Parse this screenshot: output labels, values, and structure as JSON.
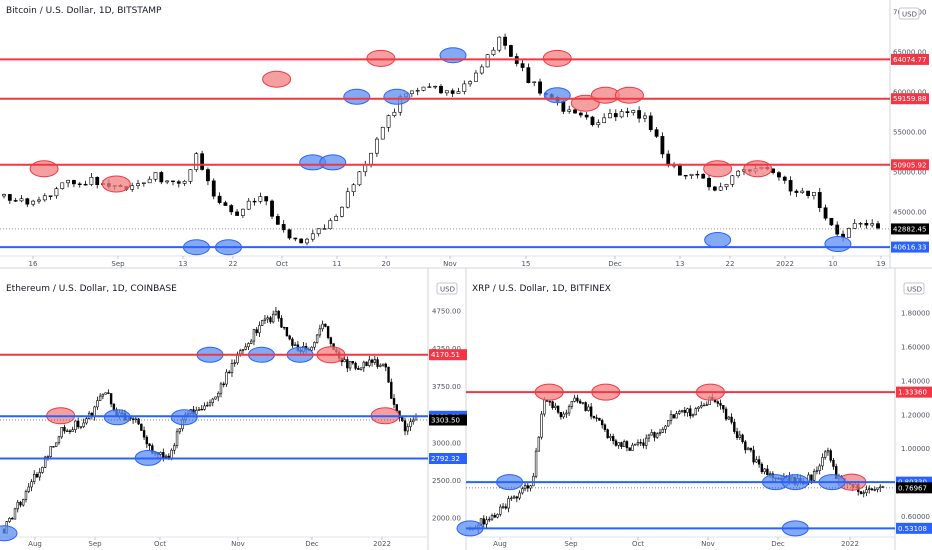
{
  "colors": {
    "up": "#ffffff",
    "down": "#000000",
    "res": "#f23645",
    "sup": "#2962ff",
    "red_fill": "#f08080",
    "blue_fill": "#5b8def",
    "price_label": "#000000"
  },
  "chart_data": [
    {
      "id": "btc",
      "type": "candlestick",
      "title": "Bitcoin / U.S. Dollar, 1D, BITSTAMP",
      "currency": "USD",
      "y_ticks": [
        45000,
        50000,
        55000,
        60000,
        65000,
        70000
      ],
      "y_tick_labels": [
        "45000.00",
        "50000.00",
        "55000.00",
        "60000.00",
        "65000.00",
        "70000.00"
      ],
      "ylim": [
        39500,
        71500
      ],
      "x_ticks": [
        "16",
        "Sep",
        "13",
        "22",
        "Oct",
        "11",
        "20",
        "Nov",
        "15",
        "Dec",
        "13",
        "22",
        "2022",
        "10",
        "19"
      ],
      "levels": [
        {
          "value": 64074.77,
          "label": "64074.77",
          "kind": "resistance"
        },
        {
          "value": 59159.88,
          "label": "59159.88",
          "kind": "resistance"
        },
        {
          "value": 50905.92,
          "label": "50905.92",
          "kind": "resistance"
        },
        {
          "value": 40616.33,
          "label": "40616.33",
          "kind": "support"
        }
      ],
      "current": {
        "value": 42882.45,
        "label": "42882.45"
      },
      "n_bars": 150,
      "path": [
        [
          0,
          47000
        ],
        [
          8,
          46000
        ],
        [
          14,
          48500
        ],
        [
          22,
          49000
        ],
        [
          30,
          47500
        ],
        [
          38,
          49500
        ],
        [
          44,
          48000
        ],
        [
          48,
          52000
        ],
        [
          52,
          47000
        ],
        [
          58,
          45000
        ],
        [
          64,
          47500
        ],
        [
          70,
          42000
        ],
        [
          76,
          41500
        ],
        [
          82,
          44000
        ],
        [
          88,
          49500
        ],
        [
          94,
          55000
        ],
        [
          100,
          60000
        ],
        [
          106,
          60800
        ],
        [
          112,
          59500
        ],
        [
          118,
          62000
        ],
        [
          124,
          67000
        ],
        [
          130,
          62000
        ],
        [
          136,
          59000
        ],
        [
          142,
          57200
        ],
        [
          148,
          56000
        ],
        [
          154,
          57500
        ],
        [
          160,
          57000
        ],
        [
          166,
          50500
        ],
        [
          172,
          49500
        ],
        [
          178,
          48000
        ],
        [
          184,
          50000
        ],
        [
          190,
          50500
        ],
        [
          196,
          48000
        ],
        [
          202,
          47000
        ],
        [
          208,
          42000
        ],
        [
          214,
          43500
        ],
        [
          218,
          42882
        ]
      ],
      "red_marks": [
        [
          10,
          50400
        ],
        [
          28,
          48500
        ],
        [
          68,
          61600
        ],
        [
          94,
          64200
        ],
        [
          138,
          64200
        ],
        [
          145,
          58600
        ],
        [
          150,
          59600
        ],
        [
          156,
          59600
        ],
        [
          178,
          50400
        ],
        [
          188,
          50400
        ]
      ],
      "blue_marks": [
        [
          48,
          40600
        ],
        [
          56,
          40600
        ],
        [
          77,
          51200
        ],
        [
          82,
          51200
        ],
        [
          88,
          59400
        ],
        [
          98,
          59400
        ],
        [
          112,
          64600
        ],
        [
          138,
          59600
        ],
        [
          178,
          41500
        ],
        [
          208,
          41000
        ]
      ]
    },
    {
      "id": "eth",
      "type": "candlestick",
      "title": "Ethereum / U.S. Dollar, 1D, COINBASE",
      "currency": "USD",
      "y_ticks": [
        2000,
        2500,
        3000,
        3750,
        4250,
        4750
      ],
      "y_tick_labels": [
        "2000.00",
        "2500.00",
        "3000.00",
        "3750.00",
        "4250.00",
        "4750.00"
      ],
      "ylim": [
        1750,
        4950
      ],
      "x_ticks": [
        "Aug",
        "Sep",
        "Oct",
        "Nov",
        "Dec",
        "2022"
      ],
      "levels": [
        {
          "value": 4170.51,
          "label": "4170.51",
          "kind": "resistance"
        },
        {
          "value": 3352.69,
          "label": "3352.69",
          "kind": "support"
        },
        {
          "value": 2792.32,
          "label": "2792.32",
          "kind": "support"
        }
      ],
      "current": {
        "value": 3303.5,
        "label": "3303.50"
      },
      "n_bars": 150,
      "path": [
        [
          0,
          1850
        ],
        [
          12,
          2550
        ],
        [
          22,
          3150
        ],
        [
          32,
          3300
        ],
        [
          40,
          3700
        ],
        [
          44,
          3350
        ],
        [
          52,
          3300
        ],
        [
          58,
          2850
        ],
        [
          64,
          2800
        ],
        [
          70,
          3350
        ],
        [
          80,
          3500
        ],
        [
          90,
          4100
        ],
        [
          100,
          4600
        ],
        [
          106,
          4700
        ],
        [
          112,
          4300
        ],
        [
          118,
          4200
        ],
        [
          124,
          4550
        ],
        [
          130,
          4100
        ],
        [
          136,
          4000
        ],
        [
          142,
          4100
        ],
        [
          148,
          4000
        ],
        [
          152,
          3400
        ],
        [
          156,
          3200
        ],
        [
          160,
          3303
        ]
      ],
      "red_marks": [
        [
          22,
          3360
        ],
        [
          127,
          4170
        ],
        [
          148,
          3360
        ]
      ],
      "blue_marks": [
        [
          0,
          1800
        ],
        [
          44,
          3340
        ],
        [
          56,
          2800
        ],
        [
          70,
          3340
        ],
        [
          80,
          4170
        ],
        [
          100,
          4170
        ],
        [
          115,
          4170
        ]
      ]
    },
    {
      "id": "xrp",
      "type": "candlestick",
      "title": "XRP / U.S. Dollar, 1D, BITFINEX",
      "currency": "USD",
      "y_ticks": [
        0.6,
        0.8,
        1.0,
        1.2,
        1.4,
        1.6,
        1.8
      ],
      "y_tick_labels": [
        "0.60000",
        "0.80000",
        "1.00000",
        "1.20000",
        "1.40000",
        "1.60000",
        "1.80000"
      ],
      "ylim": [
        0.48,
        1.9
      ],
      "x_ticks": [
        "Aug",
        "Sep",
        "Oct",
        "Nov",
        "Dec",
        "2022"
      ],
      "levels": [
        {
          "value": 1.3336,
          "label": "1.33360",
          "kind": "resistance"
        },
        {
          "value": 0.8033,
          "label": "0.80330",
          "kind": "support"
        },
        {
          "value": 0.53108,
          "label": "0.53108",
          "kind": "support"
        }
      ],
      "current": {
        "value": 0.76967,
        "label": "0.76967"
      },
      "n_bars": 150,
      "path": [
        [
          0,
          0.53
        ],
        [
          8,
          0.6
        ],
        [
          16,
          0.72
        ],
        [
          22,
          0.8
        ],
        [
          26,
          1.3
        ],
        [
          32,
          1.2
        ],
        [
          38,
          1.3
        ],
        [
          44,
          1.18
        ],
        [
          50,
          1.05
        ],
        [
          58,
          1.0
        ],
        [
          66,
          1.1
        ],
        [
          72,
          1.2
        ],
        [
          80,
          1.22
        ],
        [
          86,
          1.3
        ],
        [
          94,
          1.1
        ],
        [
          102,
          0.9
        ],
        [
          110,
          0.82
        ],
        [
          118,
          0.8
        ],
        [
          122,
          0.85
        ],
        [
          126,
          1.0
        ],
        [
          130,
          0.82
        ],
        [
          138,
          0.76
        ],
        [
          146,
          0.77
        ]
      ],
      "red_marks": [
        [
          28,
          1.3336
        ],
        [
          48,
          1.3336
        ],
        [
          85,
          1.3336
        ],
        [
          135,
          0.8033
        ]
      ],
      "blue_marks": [
        [
          0,
          0.531
        ],
        [
          14,
          0.8033
        ],
        [
          108,
          0.8033
        ],
        [
          115,
          0.8033
        ],
        [
          128,
          0.8033
        ],
        [
          115,
          0.531
        ]
      ]
    }
  ]
}
